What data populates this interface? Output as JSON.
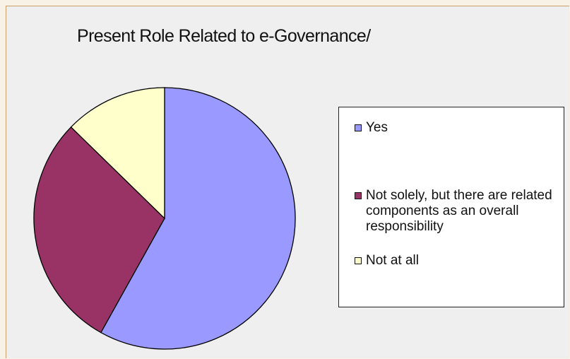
{
  "chart_data": {
    "type": "pie",
    "title": "Present Role Related to e-Governance/",
    "categories": [
      "Yes",
      "Not solely, but there are related components as an overall responsibility",
      "Not at all"
    ],
    "values": [
      58.1,
      29.2,
      12.7
    ],
    "colors": [
      "#9999ff",
      "#993366",
      "#ffffcc"
    ],
    "legend_position": "right"
  }
}
